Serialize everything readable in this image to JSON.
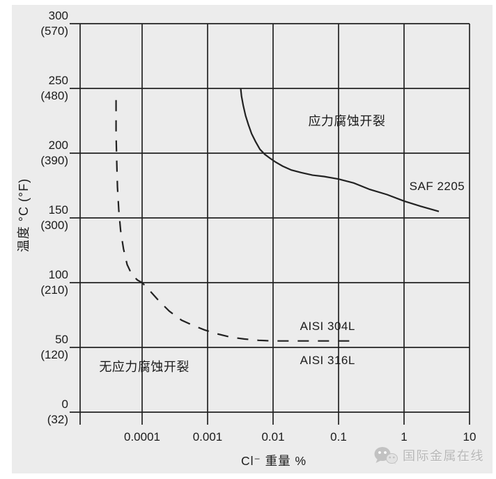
{
  "colors": {
    "line": "#222222",
    "text": "#1b1b1b",
    "panel": "#ececec",
    "page": "#ffffff",
    "watermark": "#b7b7b7"
  },
  "chart_data": {
    "type": "line",
    "title": "",
    "xlabel": "Cl⁻ 重量 %",
    "ylabel": "温度 °C (°F)",
    "x_scale": "log",
    "xlim": [
      1.13e-05,
      10
    ],
    "ylim": [
      0,
      300
    ],
    "grid": true,
    "legend_position": "none",
    "x_axis": [
      {
        "value": 0.0001,
        "label": "0.0001"
      },
      {
        "value": 0.001,
        "label": "0.001"
      },
      {
        "value": 0.01,
        "label": "0.01"
      },
      {
        "value": 0.1,
        "label": "0.1"
      },
      {
        "value": 1,
        "label": "1"
      },
      {
        "value": 10,
        "label": "10"
      }
    ],
    "y_axis": [
      {
        "c": 300,
        "label_c": "300",
        "label_f": "(570)"
      },
      {
        "c": 250,
        "label_c": "250",
        "label_f": "(480)"
      },
      {
        "c": 200,
        "label_c": "200",
        "label_f": "(390)"
      },
      {
        "c": 150,
        "label_c": "150",
        "label_f": "(300)"
      },
      {
        "c": 100,
        "label_c": "100",
        "label_f": "(210)"
      },
      {
        "c": 50,
        "label_c": "50",
        "label_f": "(120)"
      },
      {
        "c": 0,
        "label_c": "0",
        "label_f": "(32)"
      }
    ],
    "series": [
      {
        "id": "saf-2205",
        "name": "SAF 2205",
        "line": "solid",
        "points": [
          [
            0.0032,
            250
          ],
          [
            0.0033,
            244
          ],
          [
            0.0035,
            237
          ],
          [
            0.0038,
            229
          ],
          [
            0.0042,
            222
          ],
          [
            0.0047,
            215
          ],
          [
            0.0054,
            209
          ],
          [
            0.0063,
            203
          ],
          [
            0.0075,
            199
          ],
          [
            0.009,
            196
          ],
          [
            0.011,
            193
          ],
          [
            0.014,
            190
          ],
          [
            0.019,
            187
          ],
          [
            0.027,
            185
          ],
          [
            0.04,
            183
          ],
          [
            0.06,
            182
          ],
          [
            0.1,
            180
          ],
          [
            0.17,
            177
          ],
          [
            0.3,
            172
          ],
          [
            0.55,
            168
          ],
          [
            1,
            163
          ],
          [
            1.8,
            159
          ],
          [
            3.4,
            155
          ]
        ]
      },
      {
        "id": "aisi-304l-316l",
        "name": "AISI 304L / AISI 316L",
        "line": "dashed",
        "points": [
          [
            4e-05,
            241
          ],
          [
            4e-05,
            215
          ],
          [
            4.1e-05,
            193
          ],
          [
            4.2e-05,
            174
          ],
          [
            4.4e-05,
            156
          ],
          [
            4.7e-05,
            140
          ],
          [
            5.2e-05,
            126
          ],
          [
            5.9e-05,
            114
          ],
          [
            7e-05,
            106
          ],
          [
            8.5e-05,
            102
          ],
          [
            0.0001,
            100
          ],
          [
            0.00013,
            94
          ],
          [
            0.00018,
            86
          ],
          [
            0.00026,
            78
          ],
          [
            0.0004,
            71
          ],
          [
            0.0006,
            67
          ],
          [
            0.0009,
            63.5
          ],
          [
            0.0014,
            60.5
          ],
          [
            0.0022,
            58
          ],
          [
            0.0036,
            56.5
          ],
          [
            0.006,
            55.5
          ],
          [
            0.01,
            55
          ],
          [
            0.03,
            55
          ],
          [
            0.1,
            55
          ],
          [
            0.19,
            55
          ]
        ]
      }
    ],
    "annotations": [
      {
        "id": "scc-region",
        "text": "应力腐蚀开裂",
        "cl": 0.134,
        "temp": 225,
        "font_px": 18
      },
      {
        "id": "no-scc-region",
        "text": "无应力腐蚀开裂",
        "cl": 0.000108,
        "temp": 35,
        "font_px": 18
      },
      {
        "id": "saf-2205",
        "text": "SAF 2205",
        "cl": 3.2,
        "temp": 174,
        "font_px": 17
      },
      {
        "id": "aisi-304l",
        "text": "AISI 304L",
        "cl": 0.068,
        "temp": 66,
        "font_px": 17
      },
      {
        "id": "aisi-316l",
        "text": "AISI 316L",
        "cl": 0.068,
        "temp": 40,
        "font_px": 17
      }
    ]
  },
  "watermark": {
    "text": "国际金属在线",
    "icon": "wechat-icon"
  }
}
